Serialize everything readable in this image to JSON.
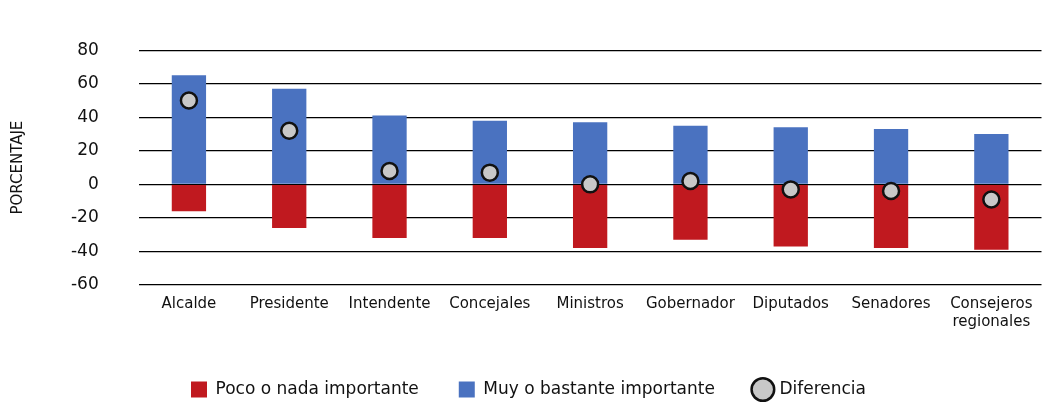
{
  "chart_data": {
    "type": "bar",
    "ylabel": "PORCENTAJE",
    "categories": [
      "Alcalde",
      "Presidente",
      "Intendente",
      "Concejales",
      "Ministros",
      "Gobernador",
      "Diputados",
      "Senadores",
      "Consejeros regionales"
    ],
    "stacked": true,
    "series": [
      {
        "name": "Poco o nada importante",
        "color": "#c0191f",
        "values": [
          -16,
          -26,
          -32,
          -32,
          -38,
          -33,
          -37,
          -38,
          -39
        ]
      },
      {
        "name": "Muy o bastante importante",
        "color": "#4a72c0",
        "values": [
          65,
          57,
          41,
          38,
          37,
          35,
          34,
          33,
          30
        ]
      },
      {
        "name": "Diferencia",
        "type": "scatter",
        "color": "#c8c8c8",
        "values": [
          50,
          32,
          8,
          7,
          0,
          2,
          -3,
          -4,
          -9
        ]
      }
    ],
    "ylim": [
      -60,
      80
    ],
    "yticks": [
      -60,
      -40,
      -20,
      0,
      20,
      40,
      60,
      80
    ],
    "grid": "y",
    "legend": "bottom",
    "marker": "circle"
  }
}
